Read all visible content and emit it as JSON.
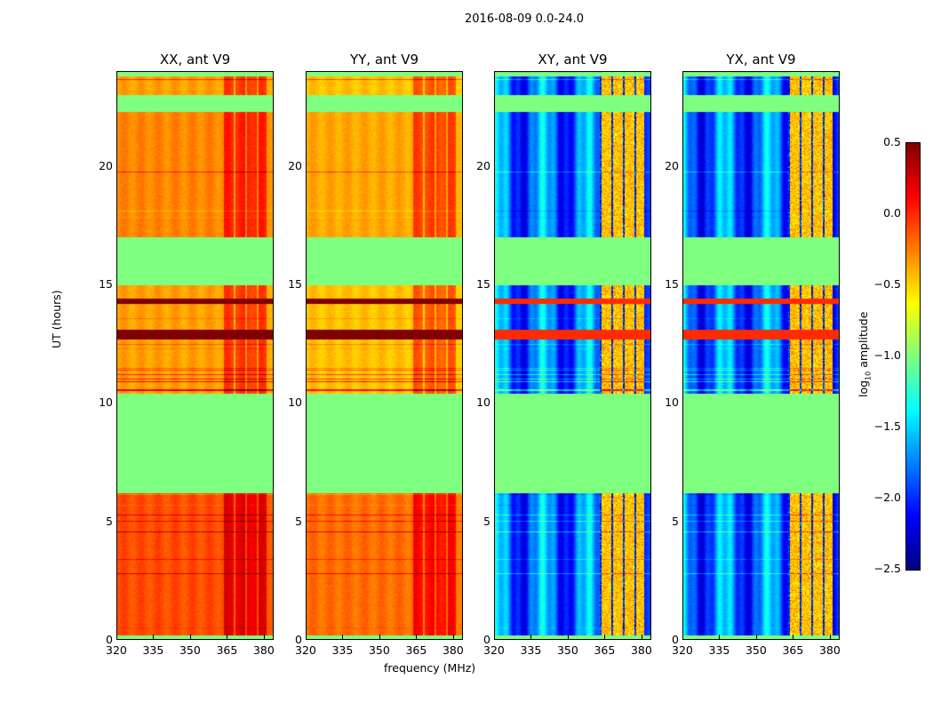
{
  "chart_data": {
    "type": "heatmap",
    "title": "2016-08-09 0.0-24.0",
    "xlabel": "frequency (MHz)",
    "ylabel": "UT (hours)",
    "xlim": [
      320,
      384
    ],
    "ylim": [
      0,
      24
    ],
    "xticks": [
      "320",
      "335",
      "350",
      "365",
      "380"
    ],
    "yticks": [
      "0",
      "5",
      "10",
      "15",
      "20"
    ],
    "panels": [
      {
        "title": "XX, ant V9",
        "kind": "auto",
        "base_log10": -0.35
      },
      {
        "title": "YY, ant V9",
        "kind": "auto",
        "base_log10": -0.45
      },
      {
        "title": "XY, ant V9",
        "kind": "cross",
        "base_log10": -1.8
      },
      {
        "title": "YX, ant V9",
        "kind": "cross",
        "base_log10": -1.8
      }
    ],
    "flagged_ut_ranges": [
      [
        0,
        0.2
      ],
      [
        6.2,
        10.4
      ],
      [
        15.0,
        17.0
      ],
      [
        22.3,
        23.0
      ],
      [
        23.8,
        24
      ]
    ],
    "strong_ut_ranges": [
      [
        12.7,
        13.1
      ],
      [
        14.2,
        14.4
      ]
    ],
    "rfi_channel_range_mhz": [
      363,
      381
    ],
    "colorbar": {
      "label": "log10 amplitude",
      "label_main": "log",
      "label_sub": "10",
      "label_rest": " amplitude",
      "range": [
        -2.5,
        0.5
      ],
      "ticks": [
        "0.5",
        "0.0",
        "−0.5",
        "−1.0",
        "−1.5",
        "−2.0",
        "−2.5"
      ],
      "colormap": "jet"
    }
  }
}
